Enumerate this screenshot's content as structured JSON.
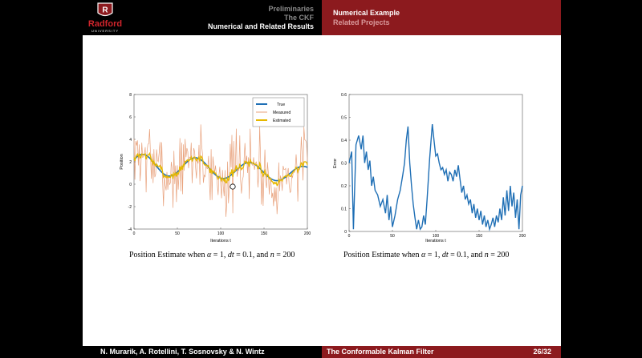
{
  "header": {
    "left_nav": [
      "Preliminaries",
      "The CKF",
      "Numerical and Related Results"
    ],
    "right_nav": [
      "Numerical Example",
      "Related Projects"
    ],
    "logo_text": "Radford",
    "logo_sub": "UNIVERSITY"
  },
  "colors": {
    "maroon": "#8c1a1e",
    "true_line": "#1f6fb5",
    "measured_line": "#e8a07a",
    "estimated_line": "#e6b800",
    "error_line": "#1f6fb5"
  },
  "captions": {
    "left": {
      "prefix": "Position Estimate when",
      "alpha": "α",
      "alpha_val": " = 1, ",
      "dt": "dt",
      "dt_val": " = 0.1, and ",
      "n": "n",
      "n_val": " = 200"
    },
    "right": {
      "prefix": "Position Estimate when",
      "alpha": "α",
      "alpha_val": " = 1, ",
      "dt": "dt",
      "dt_val": " = 0.1, and ",
      "n": "n",
      "n_val": " = 200"
    }
  },
  "footer": {
    "authors": "N. Murarik, A. Rotellini, T. Sosnovsky & N. Wintz",
    "title": "The Conformable Kalman Filter",
    "page": "26/32"
  },
  "chart_data": [
    {
      "type": "line",
      "xlabel": "Iterations t",
      "ylabel": "Position",
      "xlim": [
        0,
        200
      ],
      "ylim": [
        -4,
        8
      ],
      "xticks": [
        0,
        50,
        100,
        150,
        200
      ],
      "yticks": [
        -4,
        -2,
        0,
        2,
        4,
        6,
        8
      ],
      "legend": [
        "True",
        "Measured",
        "Estimated"
      ],
      "legend_position": "top-right",
      "series": [
        {
          "name": "True",
          "model": {
            "offset": 2.0,
            "amp": 1.0,
            "period": 62,
            "phase": 0.6,
            "decay": 0.004
          }
        },
        {
          "name": "Measured",
          "noise_sd": 1.6,
          "seed": 7
        },
        {
          "name": "Estimated",
          "model": {
            "offset": 2.0,
            "amp": 1.05,
            "period": 62,
            "phase": 0.6,
            "decay": 0.004,
            "jitter": 0.25
          }
        }
      ]
    },
    {
      "type": "line",
      "xlabel": "Iterations t",
      "ylabel": "Error",
      "xlim": [
        0,
        200
      ],
      "ylim": [
        0,
        0.6
      ],
      "xticks": [
        0,
        50,
        100,
        150,
        200
      ],
      "yticks": [
        0,
        0.1,
        0.2,
        0.3,
        0.4,
        0.5,
        0.6
      ],
      "series": [
        {
          "name": "Error",
          "points": [
            [
              0,
              0.3
            ],
            [
              3,
              0.35
            ],
            [
              5,
              0.01
            ],
            [
              8,
              0.38
            ],
            [
              11,
              0.42
            ],
            [
              14,
              0.36
            ],
            [
              16,
              0.42
            ],
            [
              18,
              0.3
            ],
            [
              20,
              0.35
            ],
            [
              22,
              0.27
            ],
            [
              24,
              0.31
            ],
            [
              26,
              0.2
            ],
            [
              28,
              0.24
            ],
            [
              30,
              0.18
            ],
            [
              33,
              0.16
            ],
            [
              36,
              0.11
            ],
            [
              39,
              0.14
            ],
            [
              42,
              0.08
            ],
            [
              44,
              0.16
            ],
            [
              46,
              0.05
            ],
            [
              48,
              0.11
            ],
            [
              50,
              0.02
            ],
            [
              53,
              0.07
            ],
            [
              56,
              0.14
            ],
            [
              59,
              0.18
            ],
            [
              62,
              0.25
            ],
            [
              64,
              0.3
            ],
            [
              66,
              0.4
            ],
            [
              68,
              0.46
            ],
            [
              70,
              0.3
            ],
            [
              72,
              0.2
            ],
            [
              74,
              0.12
            ],
            [
              76,
              0.06
            ],
            [
              78,
              0.01
            ],
            [
              80,
              0.05
            ],
            [
              82,
              0.01
            ],
            [
              84,
              0.02
            ],
            [
              86,
              0.07
            ],
            [
              88,
              0.03
            ],
            [
              90,
              0.14
            ],
            [
              93,
              0.32
            ],
            [
              96,
              0.47
            ],
            [
              98,
              0.4
            ],
            [
              100,
              0.33
            ],
            [
              102,
              0.34
            ],
            [
              104,
              0.3
            ],
            [
              106,
              0.27
            ],
            [
              108,
              0.28
            ],
            [
              110,
              0.25
            ],
            [
              112,
              0.27
            ],
            [
              114,
              0.22
            ],
            [
              116,
              0.26
            ],
            [
              118,
              0.25
            ],
            [
              120,
              0.22
            ],
            [
              122,
              0.27
            ],
            [
              124,
              0.24
            ],
            [
              126,
              0.29
            ],
            [
              128,
              0.23
            ],
            [
              130,
              0.17
            ],
            [
              132,
              0.2
            ],
            [
              134,
              0.14
            ],
            [
              136,
              0.16
            ],
            [
              138,
              0.12
            ],
            [
              140,
              0.14
            ],
            [
              142,
              0.08
            ],
            [
              144,
              0.12
            ],
            [
              146,
              0.06
            ],
            [
              148,
              0.1
            ],
            [
              150,
              0.05
            ],
            [
              152,
              0.09
            ],
            [
              154,
              0.03
            ],
            [
              156,
              0.07
            ],
            [
              158,
              0.02
            ],
            [
              160,
              0.05
            ],
            [
              162,
              0.01
            ],
            [
              164,
              0.03
            ],
            [
              166,
              0.06
            ],
            [
              168,
              0.02
            ],
            [
              170,
              0.07
            ],
            [
              172,
              0.04
            ],
            [
              174,
              0.1
            ],
            [
              176,
              0.05
            ],
            [
              178,
              0.15
            ],
            [
              180,
              0.07
            ],
            [
              182,
              0.18
            ],
            [
              184,
              0.09
            ],
            [
              186,
              0.2
            ],
            [
              188,
              0.11
            ],
            [
              190,
              0.17
            ],
            [
              192,
              0.06
            ],
            [
              194,
              0.14
            ],
            [
              196,
              0.01
            ],
            [
              198,
              0.16
            ],
            [
              200,
              0.2
            ]
          ]
        }
      ]
    }
  ]
}
